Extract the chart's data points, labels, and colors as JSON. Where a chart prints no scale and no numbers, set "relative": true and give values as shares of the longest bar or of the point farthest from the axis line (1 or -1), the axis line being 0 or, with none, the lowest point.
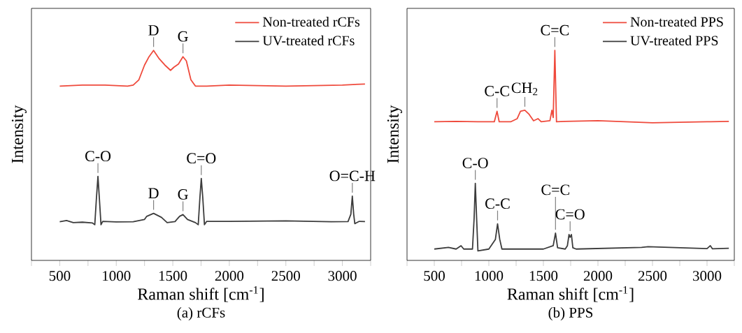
{
  "chart_data": [
    {
      "type": "line",
      "title": "(a) rCFs",
      "xlabel": "Raman shift [cm$^{-1}$]",
      "ylabel": "Intensity",
      "relative": true,
      "legend": "top right",
      "grid": false,
      "xlim": [
        250,
        3250
      ],
      "xticks": [
        {
          "value": 250,
          "label": null
        },
        500,
        {
          "value": 750,
          "label": null
        },
        1000,
        {
          "value": 1250,
          "label": null
        },
        1500,
        {
          "value": 1750,
          "label": null
        },
        2000,
        {
          "value": 2250,
          "label": null
        },
        2500,
        {
          "value": 2750,
          "label": null
        },
        3000,
        {
          "value": 3250,
          "label": null
        }
      ],
      "series": [
        {
          "name": "Non-treated rCFs",
          "color": "#ef4a3c",
          "x": [
            500,
            700,
            900,
            1100,
            1150,
            1200,
            1250,
            1290,
            1330,
            1380,
            1430,
            1480,
            1510,
            1550,
            1590,
            1620,
            1660,
            1700,
            1800,
            2000,
            2500,
            3000,
            3200
          ],
          "values": [
            0.83,
            0.835,
            0.835,
            0.83,
            0.835,
            0.86,
            0.93,
            0.97,
            1.0,
            0.96,
            0.93,
            0.905,
            0.92,
            0.935,
            0.97,
            0.95,
            0.86,
            0.83,
            0.83,
            0.835,
            0.83,
            0.835,
            0.84
          ]
        },
        {
          "name": "UV-treated rCFs",
          "color": "#3c3c3c",
          "x": [
            500,
            560,
            620,
            700,
            790,
            810,
            825,
            838,
            850,
            865,
            880,
            1000,
            1150,
            1250,
            1270,
            1330,
            1400,
            1450,
            1520,
            1560,
            1590,
            1630,
            1700,
            1725,
            1740,
            1752,
            1765,
            1780,
            1800,
            2000,
            2500,
            2900,
            3050,
            3075,
            3088,
            3100,
            3110,
            3150,
            3200
          ],
          "values": [
            0.184,
            0.19,
            0.18,
            0.182,
            0.178,
            0.17,
            0.3,
            0.4,
            0.3,
            0.17,
            0.186,
            0.183,
            0.184,
            0.195,
            0.21,
            0.224,
            0.205,
            0.18,
            0.185,
            0.21,
            0.218,
            0.195,
            0.18,
            0.17,
            0.3,
            0.39,
            0.3,
            0.17,
            0.186,
            0.186,
            0.188,
            0.184,
            0.185,
            0.22,
            0.306,
            0.22,
            0.175,
            0.186,
            0.185
          ]
        }
      ],
      "annotations": [
        {
          "text": "D",
          "x": 1330,
          "y": 1.0
        },
        {
          "text": "G",
          "x": 1590,
          "y": 0.97
        },
        {
          "text": "C-O",
          "x": 838,
          "y": 0.4
        },
        {
          "text": "D",
          "x": 1330,
          "y": 0.224
        },
        {
          "text": "G",
          "x": 1590,
          "y": 0.218
        },
        {
          "text": "C=O",
          "x": 1752,
          "y": 0.39
        },
        {
          "text": "O=C-H",
          "x": 3088,
          "y": 0.306
        }
      ]
    },
    {
      "type": "line",
      "title": "(b) PPS",
      "xlabel": "Raman shift [cm$^{-1}$]",
      "ylabel": "Intensity",
      "relative": true,
      "legend": "top right",
      "grid": false,
      "xlim": [
        250,
        3250
      ],
      "xticks": [
        {
          "value": 250,
          "label": null
        },
        500,
        {
          "value": 750,
          "label": null
        },
        1000,
        {
          "value": 1250,
          "label": null
        },
        1500,
        {
          "value": 1750,
          "label": null
        },
        2000,
        {
          "value": 2250,
          "label": null
        },
        2500,
        {
          "value": 2750,
          "label": null
        },
        3000,
        {
          "value": 3250,
          "label": null
        }
      ],
      "series": [
        {
          "name": "Non-treated PPS",
          "color": "#ef4a3c",
          "x": [
            500,
            700,
            900,
            1050,
            1075,
            1095,
            1200,
            1260,
            1290,
            1330,
            1370,
            1410,
            1450,
            1480,
            1560,
            1578,
            1590,
            1605,
            1620,
            1700,
            2000,
            2500,
            3000,
            3200
          ],
          "values": [
            0.66,
            0.662,
            0.66,
            0.66,
            0.71,
            0.66,
            0.66,
            0.675,
            0.71,
            0.715,
            0.695,
            0.665,
            0.675,
            0.66,
            0.665,
            0.715,
            0.68,
            1.0,
            0.66,
            0.662,
            0.665,
            0.655,
            0.66,
            0.662
          ]
        },
        {
          "name": "UV-treated PPS",
          "color": "#3c3c3c",
          "x": [
            500,
            630,
            700,
            745,
            770,
            850,
            865,
            876,
            888,
            900,
            1000,
            1060,
            1080,
            1100,
            1120,
            1500,
            1590,
            1611,
            1630,
            1700,
            1720,
            1735,
            1745,
            1757,
            1770,
            1800,
            2400,
            2460,
            3000,
            3030,
            3050,
            3200
          ],
          "values": [
            0.054,
            0.062,
            0.054,
            0.07,
            0.054,
            0.054,
            0.2,
            0.367,
            0.2,
            0.045,
            0.054,
            0.1,
            0.174,
            0.1,
            0.054,
            0.054,
            0.07,
            0.13,
            0.06,
            0.054,
            0.07,
            0.123,
            0.11,
            0.123,
            0.06,
            0.054,
            0.062,
            0.065,
            0.056,
            0.07,
            0.055,
            0.058
          ]
        }
      ],
      "annotations": [
        {
          "text": "C-C",
          "x": 1075,
          "y": 0.71
        },
        {
          "text": "CH$_{2}$",
          "x": 1330,
          "y": 0.715
        },
        {
          "text": "C=C",
          "x": 1605,
          "y": 1.0
        },
        {
          "text": "C-O",
          "x": 876,
          "y": 0.367
        },
        {
          "text": "C-C",
          "x": 1080,
          "y": 0.174
        },
        {
          "text": "C=C",
          "x": 1611,
          "y": 0.13
        },
        {
          "text": "C=O",
          "x": 1745,
          "y": 0.123
        }
      ]
    }
  ]
}
